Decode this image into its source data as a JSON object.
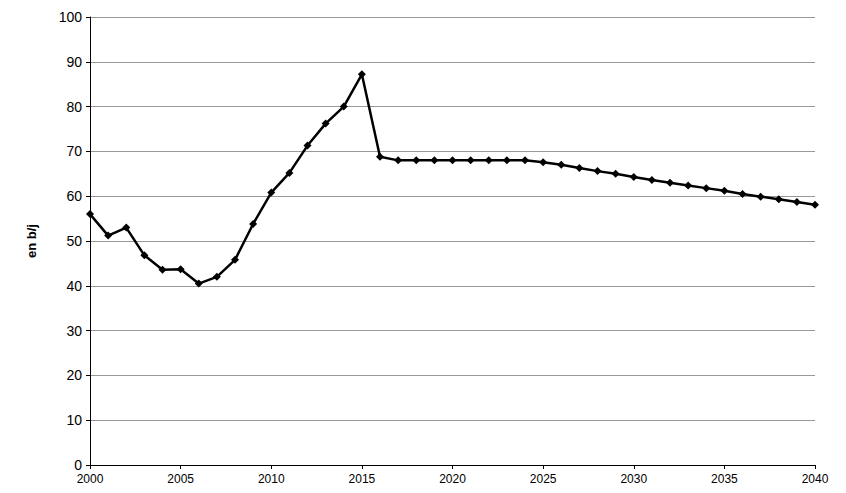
{
  "chart_data": {
    "type": "line",
    "y_label": "en b/j",
    "x": [
      2000,
      2001,
      2002,
      2003,
      2004,
      2005,
      2006,
      2007,
      2008,
      2009,
      2010,
      2011,
      2012,
      2013,
      2014,
      2015,
      2016,
      2017,
      2018,
      2019,
      2020,
      2021,
      2022,
      2023,
      2024,
      2025,
      2026,
      2027,
      2028,
      2029,
      2030,
      2031,
      2032,
      2033,
      2034,
      2035,
      2036,
      2037,
      2038,
      2039,
      2040
    ],
    "values": [
      56,
      51.2,
      53,
      46.8,
      43.6,
      43.7,
      40.5,
      42,
      45.8,
      53.8,
      60.8,
      65.2,
      71.3,
      76.2,
      80,
      87.2,
      68.8,
      68,
      68,
      68,
      68,
      68,
      68,
      68,
      68,
      67.6,
      67,
      66.3,
      65.6,
      65,
      64.3,
      63.6,
      63,
      62.4,
      61.8,
      61.2,
      60.5,
      59.9,
      59.3,
      58.7,
      58.1
    ],
    "color": "#000000",
    "marker": "diamond",
    "line_style": "solid",
    "xlim": [
      2000,
      2040
    ],
    "xticks": [
      2000,
      2005,
      2010,
      2015,
      2020,
      2025,
      2030,
      2035,
      2040
    ],
    "ylim": [
      0,
      100
    ],
    "yticks": [
      0,
      10,
      20,
      30,
      40,
      50,
      60,
      70,
      80,
      90,
      100
    ],
    "grid": true
  }
}
